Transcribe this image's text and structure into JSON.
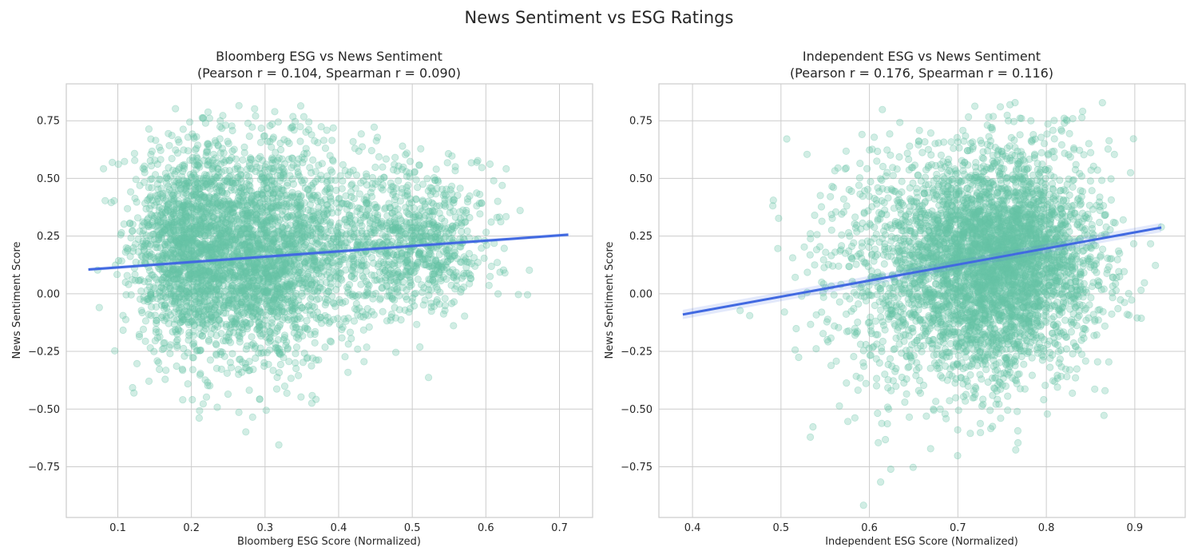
{
  "figure_title": "News Sentiment vs ESG Ratings",
  "colors": {
    "points": "#66c2a5",
    "fit_line": "#4169e1",
    "ci_band": "#4169e1",
    "grid": "#cccccc"
  },
  "chart_data": [
    {
      "type": "scatter",
      "title_line1": "Bloomberg ESG vs News Sentiment",
      "title_line2": "(Pearson r = 0.104, Spearman r = 0.090)",
      "xlabel": "Bloomberg ESG Score (Normalized)",
      "ylabel": "News Sentiment Score",
      "xlim": [
        0.03,
        0.745
      ],
      "ylim": [
        -0.97,
        0.91
      ],
      "xticks": [
        0.1,
        0.2,
        0.3,
        0.4,
        0.5,
        0.6,
        0.7
      ],
      "xtick_labels": [
        "0.1",
        "0.2",
        "0.3",
        "0.4",
        "0.5",
        "0.6",
        "0.7"
      ],
      "yticks": [
        -0.75,
        -0.5,
        -0.25,
        0.0,
        0.25,
        0.5,
        0.75
      ],
      "ytick_labels": [
        "−0.75",
        "−0.50",
        "−0.25",
        "0.00",
        "0.25",
        "0.50",
        "0.75"
      ],
      "grid": true,
      "regression": {
        "x0": 0.06,
        "y0": 0.105,
        "x1": 0.712,
        "y1": 0.256
      },
      "clusters": [
        {
          "x": 0.2,
          "y": 0.2,
          "sx": 0.04,
          "sy": 0.22,
          "weight": 0.36
        },
        {
          "x": 0.3,
          "y": 0.17,
          "sx": 0.045,
          "sy": 0.24,
          "weight": 0.36
        },
        {
          "x": 0.52,
          "y": 0.22,
          "sx": 0.05,
          "sy": 0.15,
          "weight": 0.14
        },
        {
          "x": 0.4,
          "y": 0.2,
          "sx": 0.06,
          "sy": 0.2,
          "weight": 0.14
        }
      ],
      "point_count": 4500,
      "x_range": [
        0.06,
        0.712
      ]
    },
    {
      "type": "scatter",
      "title_line1": "Independent ESG vs News Sentiment",
      "title_line2": "(Pearson r = 0.176, Spearman r = 0.116)",
      "xlabel": "Independent ESG Score (Normalized)",
      "ylabel": "News Sentiment Score",
      "xlim": [
        0.362,
        0.957
      ],
      "ylim": [
        -0.97,
        0.91
      ],
      "xticks": [
        0.4,
        0.5,
        0.6,
        0.7,
        0.8,
        0.9
      ],
      "xtick_labels": [
        "0.4",
        "0.5",
        "0.6",
        "0.7",
        "0.8",
        "0.9"
      ],
      "yticks": [
        -0.75,
        -0.5,
        -0.25,
        0.0,
        0.25,
        0.5,
        0.75
      ],
      "ytick_labels": [
        "−0.75",
        "−0.50",
        "−0.25",
        "0.00",
        "0.25",
        "0.50",
        "0.75"
      ],
      "grid": true,
      "regression": {
        "x0": 0.389,
        "y0": -0.09,
        "x1": 0.93,
        "y1": 0.287
      },
      "clusters": [
        {
          "x": 0.745,
          "y": 0.15,
          "sx": 0.055,
          "sy": 0.24,
          "weight": 0.85
        },
        {
          "x": 0.64,
          "y": 0.05,
          "sx": 0.06,
          "sy": 0.28,
          "weight": 0.15
        }
      ],
      "point_count": 4500,
      "x_range": [
        0.389,
        0.93
      ]
    }
  ]
}
